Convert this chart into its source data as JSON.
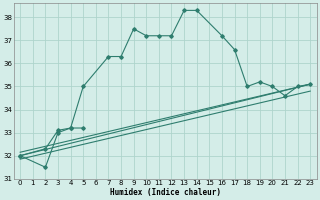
{
  "xlabel": "Humidex (Indice chaleur)",
  "background_color": "#d4ede8",
  "grid_color": "#aed4cc",
  "line_color": "#2e7d6e",
  "xlim": [
    -0.5,
    23.5
  ],
  "ylim": [
    31,
    38.6
  ],
  "yticks": [
    31,
    32,
    33,
    34,
    35,
    36,
    37,
    38
  ],
  "xticks": [
    0,
    1,
    2,
    3,
    4,
    5,
    6,
    7,
    8,
    9,
    10,
    11,
    12,
    13,
    14,
    15,
    16,
    17,
    18,
    19,
    20,
    21,
    22,
    23
  ],
  "series0_x": [
    0,
    2,
    3,
    4,
    5,
    7,
    8,
    9,
    10,
    11,
    12,
    13,
    14,
    16,
    17,
    18,
    19,
    20,
    21,
    22,
    23
  ],
  "series0_y": [
    32.0,
    32.3,
    33.1,
    33.2,
    35.0,
    36.3,
    36.3,
    37.5,
    37.2,
    37.2,
    37.2,
    38.3,
    38.3,
    37.2,
    36.6,
    35.0,
    35.2,
    35.0,
    34.6,
    35.0,
    35.1
  ],
  "series1_x": [
    0,
    2,
    3,
    4,
    5
  ],
  "series1_y": [
    32.0,
    31.5,
    33.0,
    33.2,
    33.2
  ],
  "line1_x": [
    0,
    23
  ],
  "line1_y": [
    31.85,
    34.8
  ],
  "line2_x": [
    0,
    23
  ],
  "line2_y": [
    32.0,
    35.1
  ],
  "line3_x": [
    0,
    23
  ],
  "line3_y": [
    32.15,
    35.1
  ]
}
